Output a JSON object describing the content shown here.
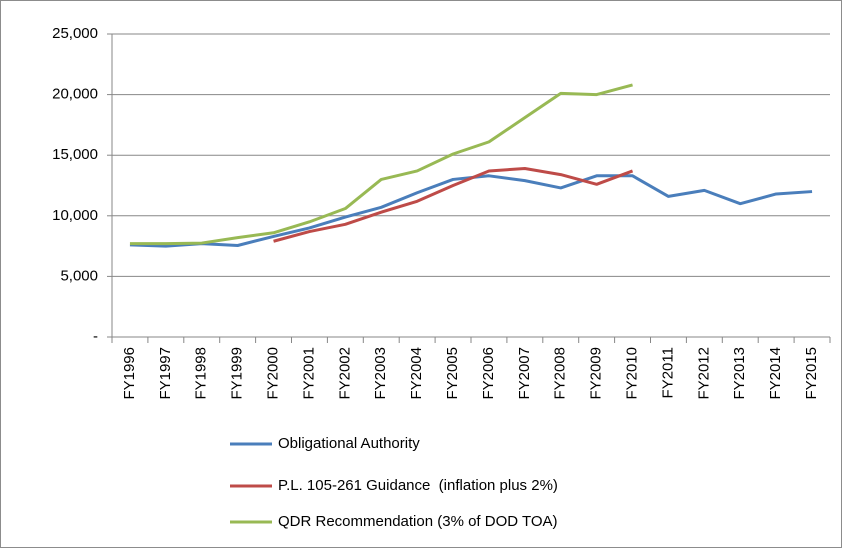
{
  "chart_data": {
    "type": "line",
    "categories": [
      "FY1996",
      "FY1997",
      "FY1998",
      "FY1999",
      "FY2000",
      "FY2001",
      "FY2002",
      "FY2003",
      "FY2004",
      "FY2005",
      "FY2006",
      "FY2007",
      "FY2008",
      "FY2009",
      "FY2010",
      "FY2011",
      "FY2012",
      "FY2013",
      "FY2014",
      "FY2015"
    ],
    "series": [
      {
        "name": "Obligational Authority",
        "color": "#4a7ebb",
        "values": [
          7600,
          7500,
          7700,
          7550,
          8300,
          9000,
          9900,
          10700,
          11900,
          13000,
          13300,
          12900,
          12300,
          13300,
          13300,
          11600,
          12100,
          11000,
          11800,
          12000
        ]
      },
      {
        "name": "P.L. 105-261 Guidance  (inflation plus 2%)",
        "color": "#be4b48",
        "values": [
          null,
          null,
          null,
          null,
          7900,
          8700,
          9300,
          10300,
          11200,
          12500,
          13700,
          13900,
          13400,
          12600,
          13700,
          null,
          null,
          null,
          null,
          null
        ]
      },
      {
        "name": "QDR Recommendation (3% of DOD TOA)",
        "color": "#98b954",
        "values": [
          7700,
          7700,
          7750,
          8200,
          8600,
          9500,
          10600,
          13000,
          13700,
          15100,
          16100,
          18100,
          20100,
          20000,
          20800,
          null,
          null,
          null,
          null,
          null
        ]
      }
    ],
    "ylim": [
      0,
      25000
    ],
    "yticks": [
      {
        "value": 0,
        "label": "-"
      },
      {
        "value": 5000,
        "label": "5,000"
      },
      {
        "value": 10000,
        "label": "10,000"
      },
      {
        "value": 15000,
        "label": "15,000"
      },
      {
        "value": 20000,
        "label": "20,000"
      },
      {
        "value": 25000,
        "label": "25,000"
      }
    ],
    "grid": true,
    "legend": "bottom"
  }
}
